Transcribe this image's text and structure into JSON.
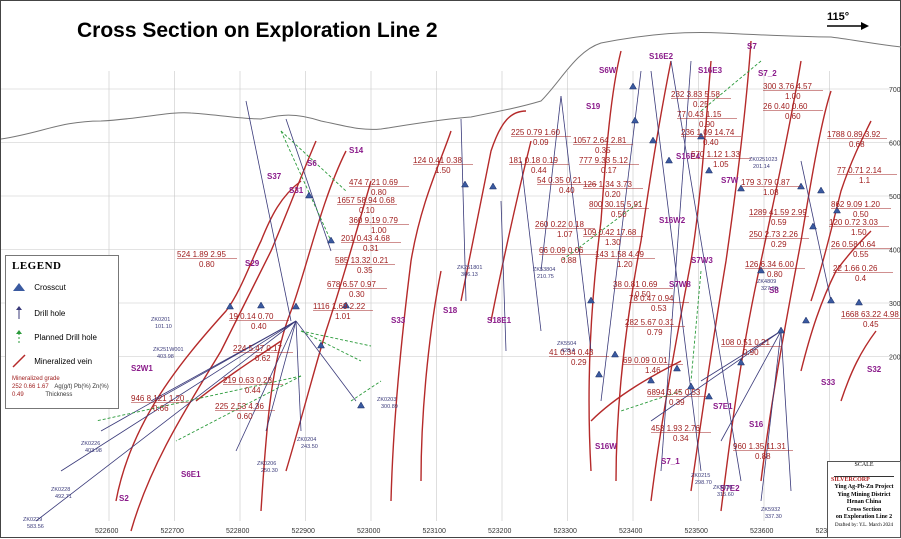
{
  "title": "Cross Section on Exploration Line 2",
  "north_arrow": "115°",
  "legend": {
    "heading": "LEGEND",
    "items": [
      "Crosscut",
      "Drill hole",
      "Planned Drill hole",
      "Mineralized vein"
    ],
    "grade_caption": "Mineralized grade",
    "grade_example": "252 0.66 1.67",
    "grade_example_2": "0.49",
    "grade_units": "Ag(g/t) Pb(%) Zn(%)",
    "thickness_label": "Thickness"
  },
  "x_axis_labels": [
    "522600",
    "522700",
    "522800",
    "522900",
    "523000",
    "523100",
    "523200",
    "523300",
    "523400",
    "523500",
    "523600",
    "523700"
  ],
  "y_axis_labels": [
    "700",
    "600",
    "500",
    "400",
    "300",
    "200"
  ],
  "veins": [
    "S6W",
    "S16E2",
    "S16E3",
    "S7",
    "S7_2",
    "S19",
    "S14",
    "S6",
    "S37",
    "S31",
    "S29",
    "S16E4",
    "S7W",
    "S16W2",
    "S7W3",
    "S7W8",
    "S8",
    "S16",
    "S18",
    "S18E1",
    "S33",
    "S2W1",
    "S6E1",
    "S2",
    "S7E1",
    "S16W",
    "S7_1",
    "S7E2",
    "S32",
    "S33"
  ],
  "grades": [
    {
      "v": "474 7.21 0.69",
      "t": "0.80"
    },
    {
      "v": "1657 58.94 0.68",
      "t": "0.10"
    },
    {
      "v": "360 9.19 0.79",
      "t": "1.00"
    },
    {
      "v": "201 0.43 4.68",
      "t": "0.31"
    },
    {
      "v": "585 13.32 0.21",
      "t": "0.35"
    },
    {
      "v": "678 6.57 0.97",
      "t": "0.30"
    },
    {
      "v": "1116 1.69 2.22",
      "t": "1.01"
    },
    {
      "v": "524 1.89 2.95",
      "t": "0.80"
    },
    {
      "v": "19 0.14 0.70",
      "t": "0.40"
    },
    {
      "v": "224 5.47 0.17",
      "t": "0.62"
    },
    {
      "v": "219 0.63 0.28",
      "t": "0.44"
    },
    {
      "v": "225 2.53 4.36",
      "t": "0.60"
    },
    {
      "v": "946 8.121 1.20",
      "t": "0.66"
    },
    {
      "v": "124 0.41 0.38",
      "t": "1.50"
    },
    {
      "v": "225 0.79 1.60",
      "t": "0.09"
    },
    {
      "v": "181 0.18 0.19",
      "t": "0.44"
    },
    {
      "v": "54 0.35 0.21",
      "t": "0.40"
    },
    {
      "v": "1057 2.64 2.81",
      "t": "0.35"
    },
    {
      "v": "777 9.33 5.12",
      "t": "0.17"
    },
    {
      "v": "126 1.34 3.73",
      "t": "0.20"
    },
    {
      "v": "800 30.15 5.91",
      "t": "0.50"
    },
    {
      "v": "260 0.22 0.18",
      "t": "1.07"
    },
    {
      "v": "109 0.42 17.68",
      "t": "1.30"
    },
    {
      "v": "66 0.09 0.06",
      "t": "0.88"
    },
    {
      "v": "143 1.58 4.49",
      "t": "1.20"
    },
    {
      "v": "38 0.81 0.69",
      "t": "0.50"
    },
    {
      "v": "78 0.47 0.94",
      "t": "0.53"
    },
    {
      "v": "282 5.67 0.31",
      "t": "0.79"
    },
    {
      "v": "41 0.34 0.43",
      "t": "0.29"
    },
    {
      "v": "69 0.09 0.01",
      "t": "1.46"
    },
    {
      "v": "6894 3.45 0.53",
      "t": "0.39"
    },
    {
      "v": "453 1.93 2.76",
      "t": "0.34"
    },
    {
      "v": "232 3.83 5.58",
      "t": "0.25"
    },
    {
      "v": "77 0.43 1.15",
      "t": "0.90"
    },
    {
      "v": "236 1.09 14.74",
      "t": "0.40"
    },
    {
      "v": "570 1.12 1.33",
      "t": "1.05"
    },
    {
      "v": "300 3.76 4.57",
      "t": "1.00"
    },
    {
      "v": "26 0.40 0.60",
      "t": "0.60"
    },
    {
      "v": "1788 0.89 3.92",
      "t": "0.68"
    },
    {
      "v": "77 0.71 2.14",
      "t": "1.1"
    },
    {
      "v": "179 3.79 0.87",
      "t": "1.08"
    },
    {
      "v": "1289 41.59 2.99",
      "t": "0.59"
    },
    {
      "v": "862 9.09 1.20",
      "t": "0.50"
    },
    {
      "v": "120 0.72 3.03",
      "t": "1.50"
    },
    {
      "v": "250 2.73 2.26",
      "t": "0.29"
    },
    {
      "v": "26 0.58 0.64",
      "t": "0.55"
    },
    {
      "v": "126 6.34 6.00",
      "t": "0.80"
    },
    {
      "v": "22 1.66 0.26",
      "t": "0.4"
    },
    {
      "v": "1668 63.22 4.98",
      "t": "0.45"
    },
    {
      "v": "108 0.51 0.21",
      "t": "0.90"
    },
    {
      "v": "960 1.35 11.31",
      "t": "0.88"
    }
  ],
  "drill_holes": [
    {
      "id": "ZK0201",
      "depth": "101.10"
    },
    {
      "id": "ZK251W001",
      "depth": "403.98"
    },
    {
      "id": "ZK0226",
      "depth": "403.98"
    },
    {
      "id": "ZK0228",
      "depth": "492.71"
    },
    {
      "id": "ZK0229",
      "depth": "583.56"
    },
    {
      "id": "ZK0204",
      "depth": "243.50"
    },
    {
      "id": "ZK0206",
      "depth": "250.30"
    },
    {
      "id": "ZK0203",
      "depth": "300.89"
    },
    {
      "id": "ZK251801",
      "depth": "306.13"
    },
    {
      "id": "ZK53804",
      "depth": "210.75"
    },
    {
      "id": "ZK5504",
      "depth": "428.4"
    },
    {
      "id": "ZK0215",
      "depth": "298.70"
    },
    {
      "id": "ZK5910",
      "depth": "315.60"
    },
    {
      "id": "ZK5932",
      "depth": "337.30"
    },
    {
      "id": "ZK4809",
      "depth": "327.30"
    },
    {
      "id": "ZK0251023",
      "depth": "201.14"
    }
  ],
  "title_block": {
    "company": "SILVERCORP",
    "line1": "Ying Ag-Pb-Zn Project",
    "line2": "Ying Mining District",
    "line3": "Henan China",
    "line4": "Cross Section",
    "line5": "on Exploration Line 2",
    "drafted": "Drafted by: Y.L. March 2024",
    "scale": "SCALE"
  }
}
